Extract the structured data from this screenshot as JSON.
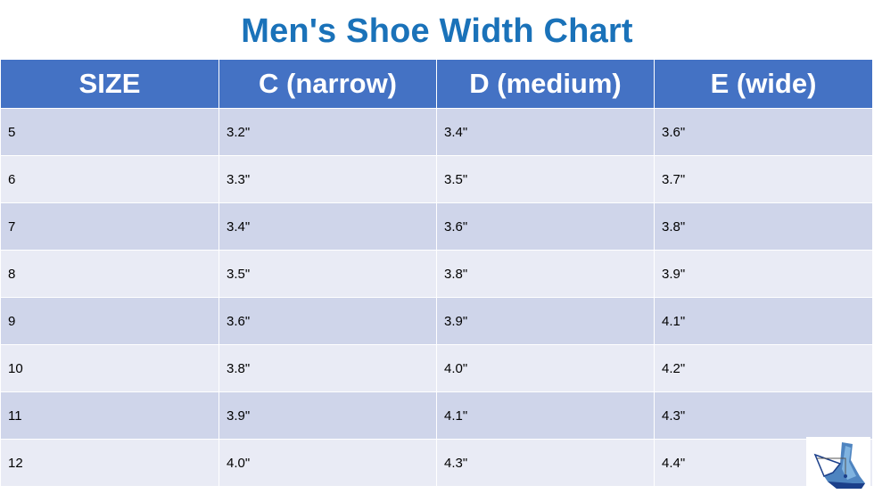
{
  "title": "Men's Shoe Width Chart",
  "table": {
    "headers": [
      "SIZE",
      "C (narrow)",
      "D (medium)",
      "E (wide)"
    ],
    "rows": [
      [
        "5",
        "3.2\"",
        "3.4\"",
        "3.6\""
      ],
      [
        "6",
        "3.3\"",
        "3.5\"",
        "3.7\""
      ],
      [
        "7",
        "3.4\"",
        "3.6\"",
        "3.8\""
      ],
      [
        "8",
        "3.5\"",
        "3.8\"",
        "3.9\""
      ],
      [
        "9",
        "3.6\"",
        "3.9\"",
        "4.1\""
      ],
      [
        "10",
        "3.8\"",
        "4.0\"",
        "4.2\""
      ],
      [
        "11",
        "3.9\"",
        "4.1\"",
        "4.3\""
      ],
      [
        "12",
        "4.0\"",
        "4.3\"",
        "4.4\""
      ]
    ]
  },
  "colors": {
    "title": "#1a72b9",
    "header_bg": "#4472c4",
    "row_odd": "#cfd5ea",
    "row_even": "#e9ebf5"
  },
  "logo_icon": "foot-logo-icon"
}
